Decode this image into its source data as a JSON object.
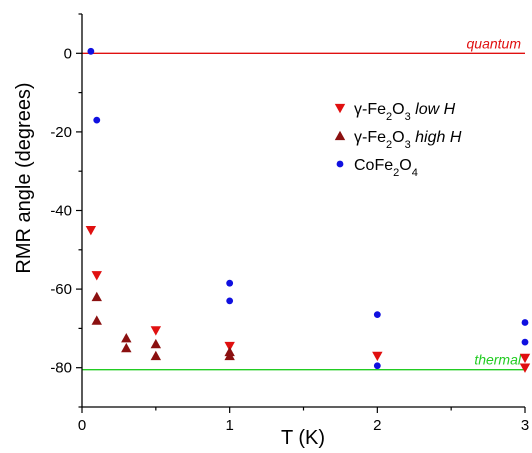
{
  "chart_data": {
    "type": "scatter",
    "xlabel": "T (K)",
    "ylabel": "RMR angle (degrees)",
    "xlim": [
      0,
      3
    ],
    "ylim": [
      -90,
      10
    ],
    "x_ticks": [
      "0",
      "1",
      "2",
      "3"
    ],
    "y_ticks": [
      "0",
      "-20",
      "-40",
      "-60",
      "-80"
    ],
    "series": [
      {
        "name": "γ-Fe2O3 low H",
        "legend": {
          "prefix": "γ-Fe",
          "sub1": "2",
          "mid": "O",
          "sub2": "3",
          "italic": " low H"
        },
        "color": "#e01010",
        "marker": "triangle-down",
        "points": [
          [
            0.06,
            -45
          ],
          [
            0.1,
            -56.5
          ],
          [
            0.5,
            -70.5
          ],
          [
            1.0,
            -74.5
          ],
          [
            2.0,
            -77
          ],
          [
            3.0,
            -77.5
          ],
          [
            3.0,
            -80
          ]
        ]
      },
      {
        "name": "γ-Fe2O3 high H",
        "legend": {
          "prefix": "γ-Fe",
          "sub1": "2",
          "mid": "O",
          "sub2": "3",
          "italic": " high H"
        },
        "color": "#8b1010",
        "marker": "triangle-up",
        "points": [
          [
            0.1,
            -62
          ],
          [
            0.1,
            -68
          ],
          [
            0.3,
            -72.5
          ],
          [
            0.3,
            -75
          ],
          [
            0.5,
            -74
          ],
          [
            0.5,
            -77
          ],
          [
            1.0,
            -76
          ],
          [
            1.0,
            -77
          ]
        ]
      },
      {
        "name": "CoFe2O4",
        "legend": {
          "prefix": "CoFe",
          "sub1": "2",
          "mid": "O",
          "sub2": "4",
          "italic": ""
        },
        "color": "#1010e0",
        "marker": "circle",
        "points": [
          [
            0.06,
            0.5
          ],
          [
            0.1,
            -17
          ],
          [
            1.0,
            -58.5
          ],
          [
            1.0,
            -63
          ],
          [
            2.0,
            -66.5
          ],
          [
            2.0,
            -79.5
          ],
          [
            3.0,
            -68.5
          ],
          [
            3.0,
            -73.5
          ]
        ]
      }
    ],
    "reference_lines": [
      {
        "label": "quantum",
        "y": 0,
        "color": "#e01010"
      },
      {
        "label": "thermal",
        "y": -80.5,
        "color": "#22cc22"
      }
    ],
    "grid": false,
    "legend_position": "top-right"
  }
}
